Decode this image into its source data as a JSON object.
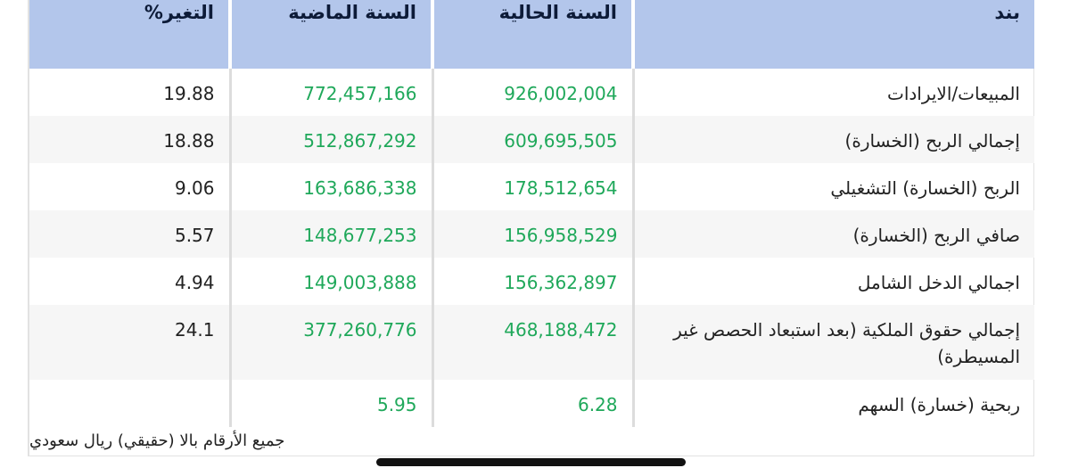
{
  "table": {
    "headers": [
      "بند",
      "السنة الحالية",
      "السنة الماضية",
      "التغير%"
    ],
    "rows": [
      {
        "item": "المبيعات/الايرادات",
        "current": "926,002,004",
        "previous": "772,457,166",
        "change": "19.88"
      },
      {
        "item": "إجمالي الربح (الخسارة)",
        "current": "609,695,505",
        "previous": "512,867,292",
        "change": "18.88"
      },
      {
        "item": "الربح (الخسارة) التشغيلي",
        "current": "178,512,654",
        "previous": "163,686,338",
        "change": "9.06"
      },
      {
        "item": "صافي الربح (الخسارة)",
        "current": "156,958,529",
        "previous": "148,677,253",
        "change": "5.57"
      },
      {
        "item": "اجمالي الدخل الشامل",
        "current": "156,362,897",
        "previous": "149,003,888",
        "change": "4.94"
      },
      {
        "item": "إجمالي حقوق الملكية (بعد استبعاد الحصص غير المسيطرة)",
        "current": "468,188,472",
        "previous": "377,260,776",
        "change": "24.1"
      },
      {
        "item": "ربحية (خسارة) السهم",
        "current": "6.28",
        "previous": "5.95",
        "change": ""
      }
    ]
  },
  "footnote": "جميع الأرقام بالا (حقيقي) ريال سعودي",
  "colors": {
    "header_bg": "#b3c6eb",
    "header_text": "#0d1b38",
    "value_green": "#1fa85a",
    "alt_row": "#f6f6f6"
  }
}
